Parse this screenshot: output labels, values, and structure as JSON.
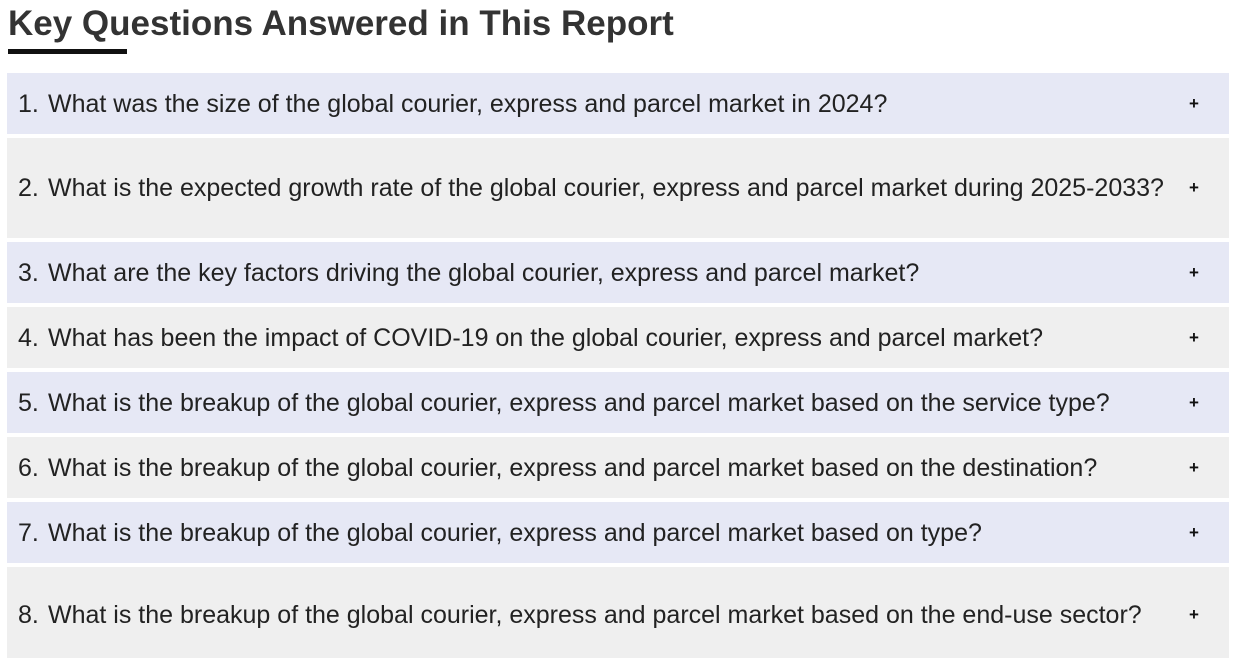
{
  "section": {
    "title": "Key Questions Answered in This Report"
  },
  "faq": {
    "items": [
      {
        "number": "1.",
        "question": "What was the size of the global courier, express and parcel market in 2024?",
        "toggle": "+"
      },
      {
        "number": "2.",
        "question": "What is the expected growth rate of the global courier, express and parcel market during 2025-2033?",
        "toggle": "+"
      },
      {
        "number": "3.",
        "question": "What are the key factors driving the global courier, express and parcel market?",
        "toggle": "+"
      },
      {
        "number": "4.",
        "question": "What has been the impact of COVID-19 on the global courier, express and parcel market?",
        "toggle": "+"
      },
      {
        "number": "5.",
        "question": "What is the breakup of the global courier, express and parcel market based on the service type?",
        "toggle": "+"
      },
      {
        "number": "6.",
        "question": "What is the breakup of the global courier, express and parcel market based on the destination?",
        "toggle": "+"
      },
      {
        "number": "7.",
        "question": "What is the breakup of the global courier, express and parcel market based on type?",
        "toggle": "+"
      },
      {
        "number": "8.",
        "question": "What is the breakup of the global courier, express and parcel market based on the end-use sector?",
        "toggle": "+"
      }
    ]
  },
  "colors": {
    "row_blue": "#e6e8f5",
    "row_gray": "#efefef",
    "heading_text": "#333333",
    "underline": "#111111"
  },
  "icons": {
    "toggle": "plus-icon"
  }
}
